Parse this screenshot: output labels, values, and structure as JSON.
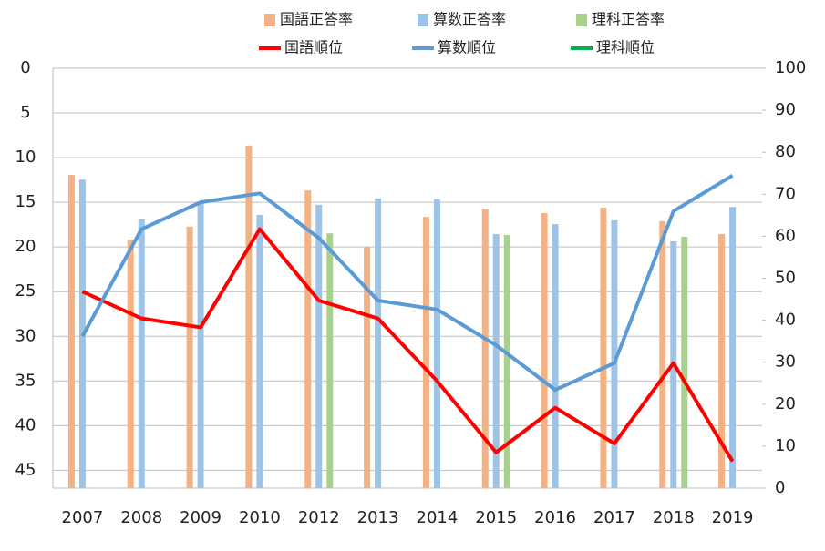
{
  "chart_data": {
    "type": "combo",
    "categories": [
      "2007",
      "2008",
      "2009",
      "2010",
      "2012",
      "2013",
      "2014",
      "2015",
      "2016",
      "2017",
      "2018",
      "2019"
    ],
    "ylim": [
      0,
      47
    ],
    "y_inverted": true,
    "yticks": [
      0,
      5,
      10,
      15,
      20,
      25,
      30,
      35,
      40,
      45
    ],
    "y2lim": [
      0,
      100
    ],
    "y2ticks": [
      0,
      10,
      20,
      30,
      40,
      50,
      60,
      70,
      80,
      90,
      100
    ],
    "grid": true,
    "legend": "top",
    "series": [
      {
        "name": "国語正答率",
        "type": "bar",
        "axis": "y2",
        "color": "#f4b183",
        "values": [
          74.6,
          59.2,
          62.3,
          81.6,
          70.9,
          57.5,
          64.6,
          66.4,
          65.5,
          66.8,
          63.6,
          60.5
        ]
      },
      {
        "name": "算数正答率",
        "type": "bar",
        "axis": "y2",
        "color": "#9dc3e6",
        "values": [
          73.5,
          64,
          68.3,
          65.1,
          67.5,
          69,
          68.8,
          60.5,
          62.9,
          63.8,
          58.8,
          67
        ]
      },
      {
        "name": "理科正答率",
        "type": "bar",
        "axis": "y2",
        "color": "#a9d18e",
        "values": [
          null,
          null,
          null,
          null,
          60.7,
          null,
          null,
          60.3,
          null,
          null,
          59.9,
          null
        ]
      },
      {
        "name": "国語順位",
        "type": "line",
        "color": "#ff0000",
        "values": [
          25,
          28,
          29,
          18,
          26,
          28,
          35,
          43,
          38,
          42,
          33,
          44
        ]
      },
      {
        "name": "算数順位",
        "type": "line",
        "color": "#5b9bd5",
        "values": [
          30,
          18,
          15,
          14,
          19,
          26,
          27,
          31,
          36,
          33,
          16,
          12
        ]
      },
      {
        "name": "理科順位",
        "type": "line",
        "color": "#00b050",
        "values": [
          null,
          null,
          null,
          null,
          null,
          null,
          null,
          null,
          null,
          null,
          null,
          null
        ]
      }
    ]
  }
}
